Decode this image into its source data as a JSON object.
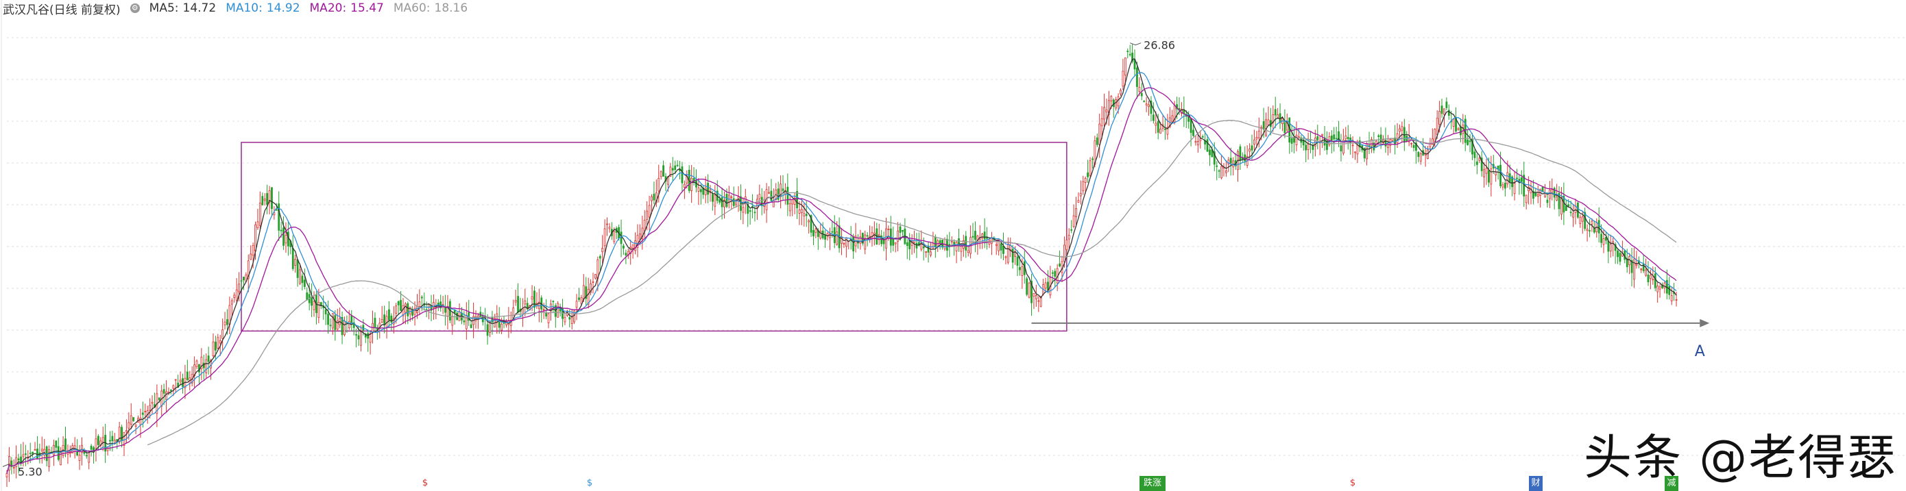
{
  "legend": {
    "title": "武汉凡谷(日线 前复权)",
    "ma5": {
      "label": "MA5:",
      "value": "14.72",
      "color": "#333333"
    },
    "ma10": {
      "label": "MA10:",
      "value": "14.92",
      "color": "#2f8fd6"
    },
    "ma20": {
      "label": "MA20:",
      "value": "15.47",
      "color": "#a0179a"
    },
    "ma60": {
      "label": "MA60:",
      "value": "18.16",
      "color": "#999999"
    }
  },
  "annotations": {
    "high_label": "26.86",
    "low_label": "5.30",
    "point_label": "A"
  },
  "watermark": "头条 @老得瑟",
  "event_markers": [
    {
      "x": 620,
      "text": "$",
      "color": "#d8312d",
      "bg": "transparent"
    },
    {
      "x": 860,
      "text": "$",
      "color": "#2f8fd6",
      "bg": "transparent"
    },
    {
      "x": 1672,
      "text": "跌涨",
      "color": "#ffffff",
      "bg": "#2e9b2e"
    },
    {
      "x": 1973,
      "text": "$",
      "color": "#d8312d",
      "bg": "transparent"
    },
    {
      "x": 2240,
      "text": "财",
      "color": "#ffffff",
      "bg": "#3a6bbf"
    },
    {
      "x": 2438,
      "text": "减",
      "color": "#ffffff",
      "bg": "#2e9b2e"
    }
  ],
  "colors": {
    "up": "#e0302c",
    "down": "#22a02b",
    "box": "#9b2a8f",
    "arrow": "#777777"
  },
  "chart_data": {
    "type": "candlestick",
    "title": "",
    "x_tick_labels": [],
    "ylim": [
      5.0,
      28.0
    ],
    "grid": true,
    "high": 26.86,
    "low": 5.3,
    "box": {
      "start_index": 100,
      "end_index": 452,
      "y_low": 12.2,
      "y_high": 21.8
    },
    "arrow": {
      "start_index": 437,
      "end_index": 722,
      "y": 12.6
    },
    "ma_last": {
      "MA5": 14.72,
      "MA10": 14.92,
      "MA20": 15.47,
      "MA60": 18.16
    },
    "price_path_keypoints": [
      [
        0,
        5.4
      ],
      [
        15,
        6.0
      ],
      [
        30,
        6.0
      ],
      [
        45,
        6.6
      ],
      [
        60,
        8.3
      ],
      [
        75,
        9.6
      ],
      [
        88,
        11.2
      ],
      [
        100,
        14.5
      ],
      [
        108,
        18.5
      ],
      [
        112,
        19.0
      ],
      [
        118,
        17.0
      ],
      [
        128,
        14.0
      ],
      [
        140,
        12.6
      ],
      [
        152,
        11.9
      ],
      [
        165,
        13.0
      ],
      [
        180,
        13.6
      ],
      [
        195,
        12.9
      ],
      [
        205,
        12.4
      ],
      [
        220,
        13.6
      ],
      [
        240,
        13.1
      ],
      [
        248,
        14.4
      ],
      [
        256,
        17.4
      ],
      [
        264,
        16.2
      ],
      [
        270,
        17.0
      ],
      [
        280,
        20.2
      ],
      [
        286,
        20.2
      ],
      [
        295,
        19.3
      ],
      [
        305,
        18.8
      ],
      [
        318,
        18.6
      ],
      [
        330,
        19.4
      ],
      [
        345,
        17.3
      ],
      [
        360,
        16.6
      ],
      [
        375,
        17.0
      ],
      [
        390,
        16.7
      ],
      [
        405,
        16.3
      ],
      [
        418,
        17.3
      ],
      [
        430,
        16.0
      ],
      [
        437,
        13.9
      ],
      [
        445,
        14.6
      ],
      [
        452,
        16.5
      ],
      [
        460,
        19.8
      ],
      [
        468,
        23.3
      ],
      [
        474,
        24.4
      ],
      [
        478,
        26.3
      ],
      [
        484,
        24.2
      ],
      [
        492,
        22.3
      ],
      [
        500,
        23.6
      ],
      [
        508,
        22.0
      ],
      [
        518,
        20.6
      ],
      [
        528,
        21.2
      ],
      [
        540,
        23.1
      ],
      [
        552,
        21.6
      ],
      [
        565,
        21.9
      ],
      [
        580,
        21.4
      ],
      [
        595,
        22.3
      ],
      [
        605,
        21.1
      ],
      [
        612,
        23.3
      ],
      [
        620,
        22.6
      ],
      [
        630,
        20.3
      ],
      [
        645,
        19.6
      ],
      [
        660,
        18.9
      ],
      [
        675,
        17.6
      ],
      [
        690,
        15.9
      ],
      [
        700,
        14.9
      ],
      [
        706,
        14.8
      ],
      [
        712,
        13.8
      ]
    ]
  }
}
